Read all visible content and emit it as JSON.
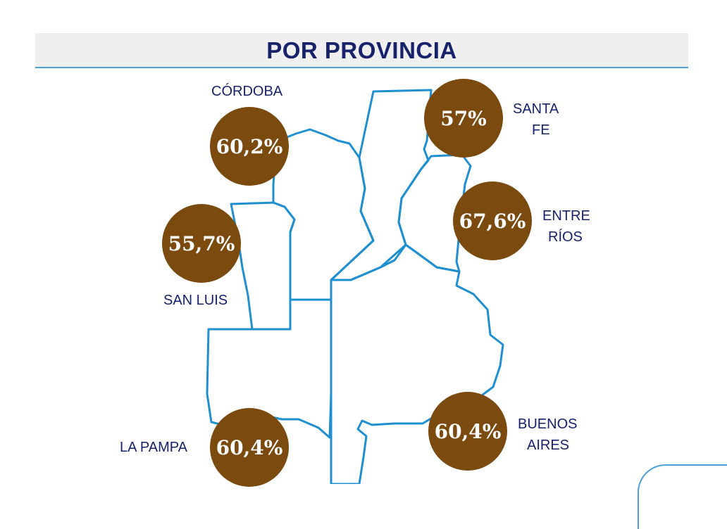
{
  "title": "POR PROVINCIA",
  "colors": {
    "title": "#17226b",
    "badge": "#7a4a0e",
    "border": "#4a9fd8",
    "header_bg": "#efefef"
  },
  "provinces": {
    "cordoba": {
      "name": "CÓRDOBA",
      "value": "60,2%"
    },
    "santa_fe": {
      "name_line1": "SANTA",
      "name_line2": "FE",
      "value": "57%"
    },
    "entre_rios": {
      "name_line1": "ENTRE",
      "name_line2": "RÍOS",
      "value": "67,6%"
    },
    "san_luis": {
      "name": "SAN LUIS",
      "value": "55,7%"
    },
    "la_pampa": {
      "name": "LA PAMPA",
      "value": "60,4%"
    },
    "buenos_aires": {
      "name_line1": "BUENOS",
      "name_line2": "AIRES",
      "value": "60,4%"
    }
  }
}
